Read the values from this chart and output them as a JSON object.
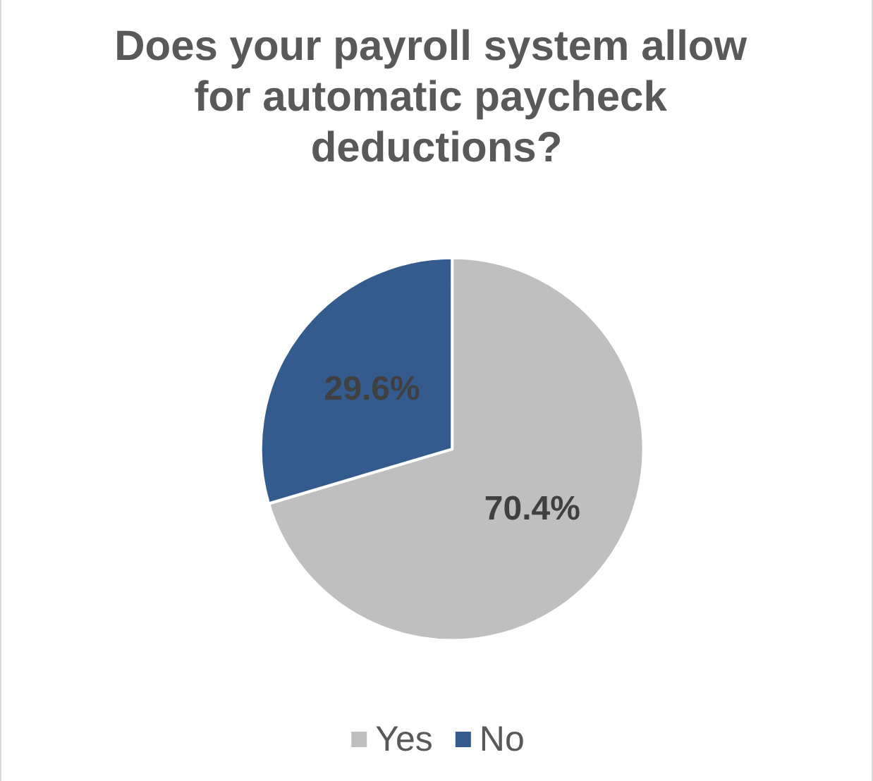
{
  "chart_data": {
    "type": "pie",
    "title": "Does your payroll system allow for automatic paycheck deductions?",
    "categories": [
      "Yes",
      "No"
    ],
    "values": [
      70.4,
      29.6
    ],
    "colors": [
      "#bfbfbf",
      "#335b8e"
    ],
    "value_labels": [
      "70.4%",
      "29.6%"
    ],
    "legend": "bottom"
  }
}
